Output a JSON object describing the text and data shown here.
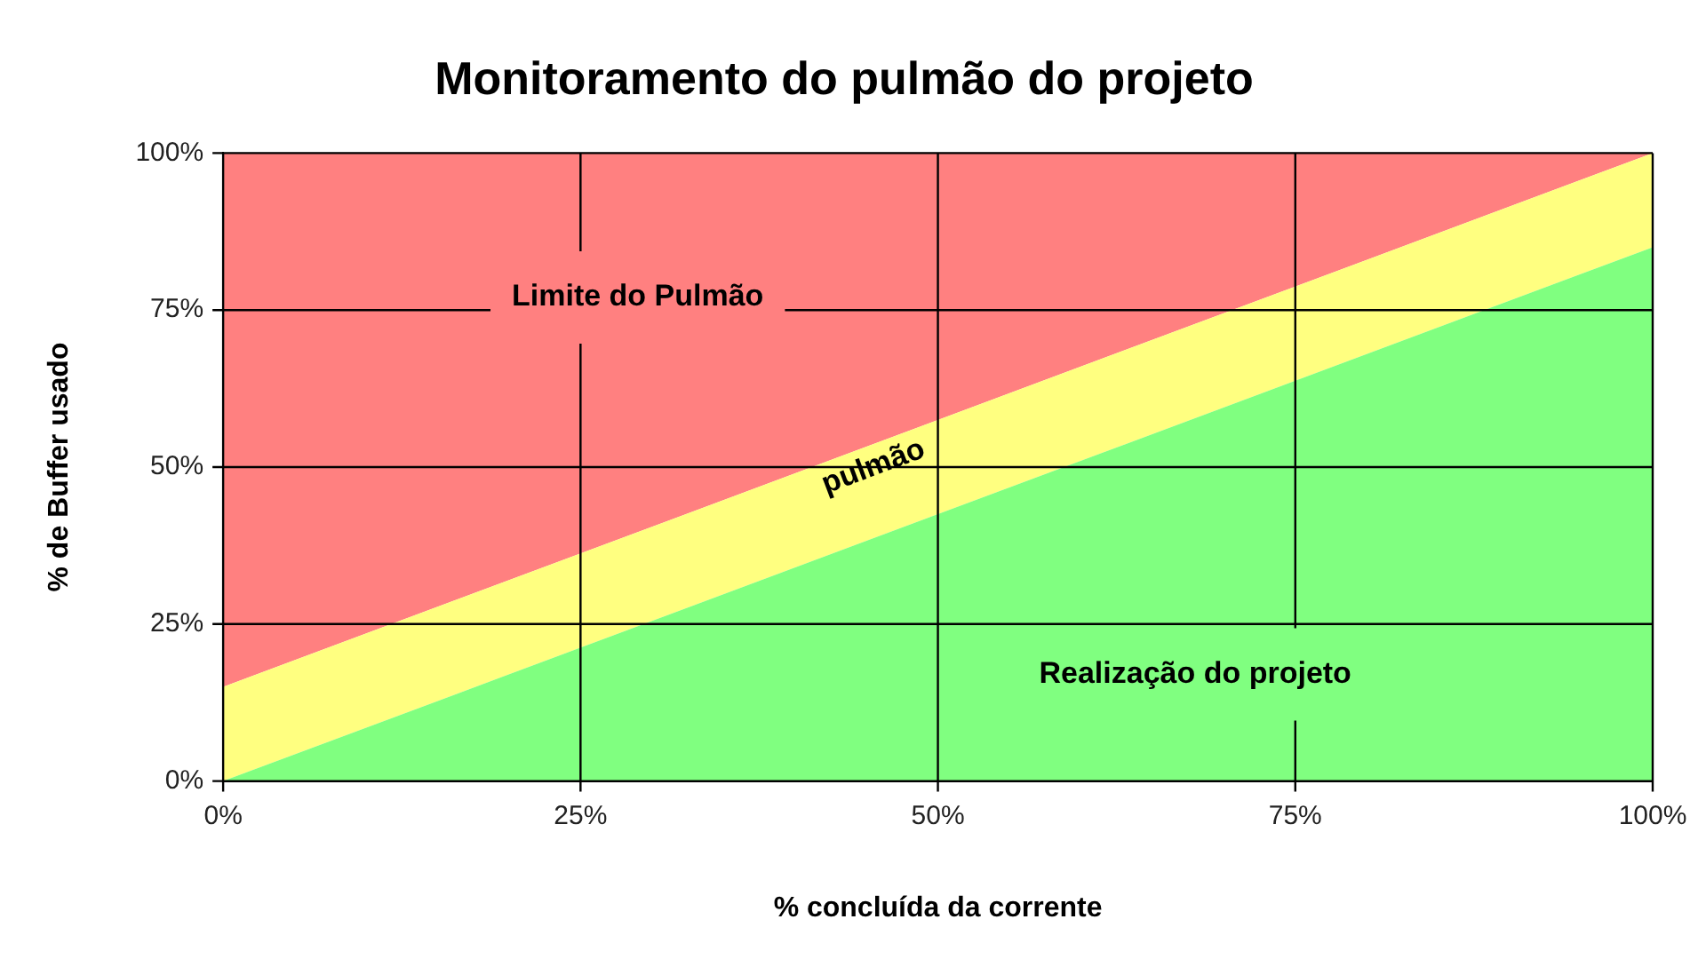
{
  "chart_data": {
    "type": "area",
    "title": "Monitoramento do pulmão do projeto",
    "xlabel": "% concluída da corrente",
    "ylabel": "% de Buffer usado",
    "x": [
      0,
      100
    ],
    "series": [
      {
        "color": "#80ff80",
        "values": [
          0,
          85
        ]
      },
      {
        "color": "#ffff80",
        "values": [
          15,
          100
        ]
      },
      {
        "color": "#ff8080",
        "values": [
          100,
          100
        ]
      }
    ],
    "xlim": [
      0,
      100
    ],
    "ylim": [
      0,
      100
    ],
    "xticks": [
      {
        "value": 0,
        "label": "0%"
      },
      {
        "value": 25,
        "label": "25%"
      },
      {
        "value": 50,
        "label": "50%"
      },
      {
        "value": 75,
        "label": "75%"
      },
      {
        "value": 100,
        "label": "100%"
      }
    ],
    "yticks": [
      {
        "value": 0,
        "label": "0%"
      },
      {
        "value": 25,
        "label": "25%"
      },
      {
        "value": 50,
        "label": "50%"
      },
      {
        "value": 75,
        "label": "75%"
      },
      {
        "value": 100,
        "label": "100%"
      }
    ],
    "grid": true,
    "legend": false,
    "annotations": [
      "Limite do Pulmão",
      "pulmão",
      "Realização do projeto"
    ]
  }
}
